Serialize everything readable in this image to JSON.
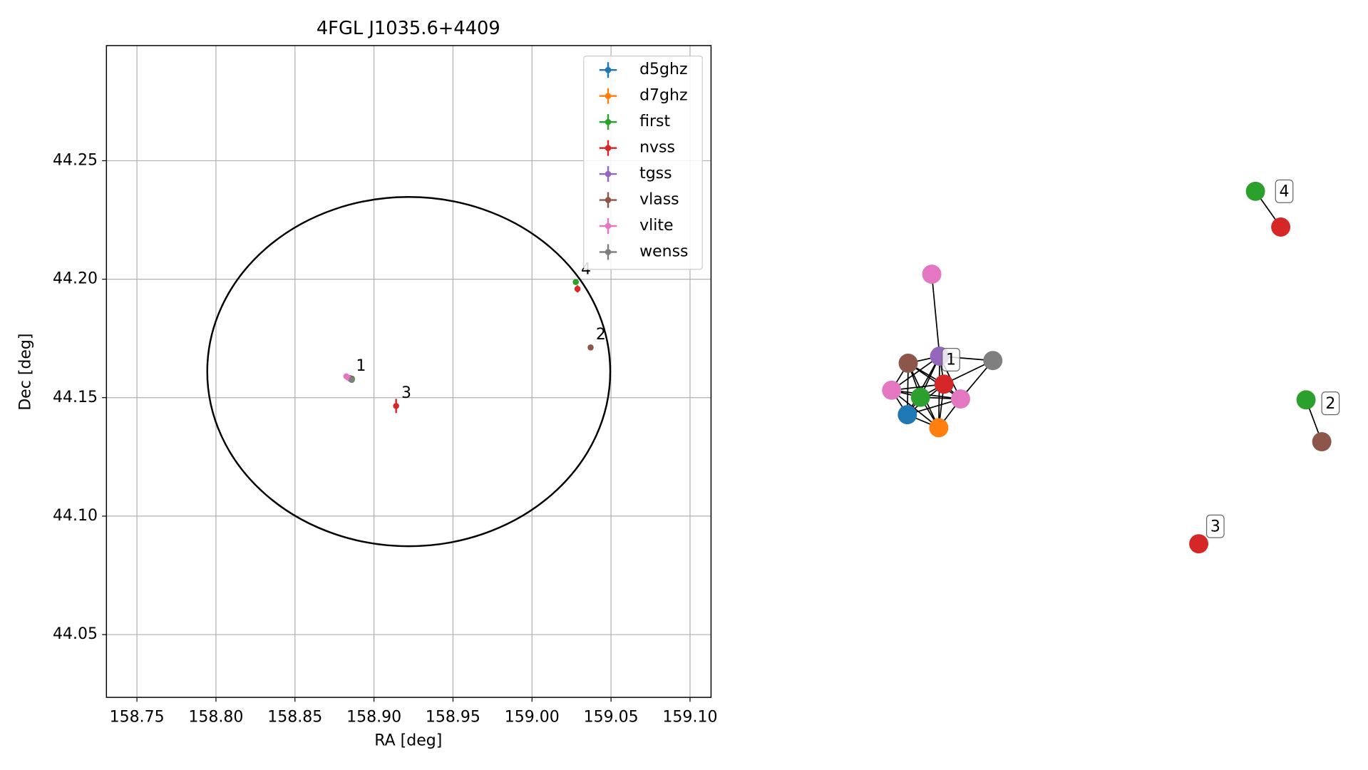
{
  "chart_data": [
    {
      "type": "scatter",
      "title": "4FGL J1035.6+4409",
      "x_label": "RA [deg]",
      "y_label": "Dec [deg]",
      "xlim": [
        158.7307,
        159.1133
      ],
      "ylim": [
        44.0235,
        44.2986
      ],
      "xticks": [
        158.75,
        {
          "value": 158.8,
          "label": "158.80"
        },
        158.85,
        {
          "value": 158.9,
          "label": "158.90"
        },
        158.95,
        {
          "value": 159.0,
          "label": "159.00"
        },
        159.05,
        {
          "value": 159.1,
          "label": "159.10"
        }
      ],
      "yticks": [
        44.05,
        {
          "value": 44.1,
          "label": "44.10"
        },
        44.15,
        {
          "value": 44.2,
          "label": "44.20"
        },
        44.25
      ],
      "grid": true,
      "legend": "upper right",
      "ellipse": {
        "ra": 158.922,
        "dec": 44.161,
        "a": 0.1275,
        "b": 0.0737
      },
      "series": [
        {
          "name": "d5ghz",
          "color": "#1f77b4",
          "x": [
            158.886
          ],
          "values": [
            44.158
          ]
        },
        {
          "name": "d7ghz",
          "color": "#ff7f0e",
          "x": [
            158.886
          ],
          "values": [
            44.158
          ]
        },
        {
          "name": "first",
          "color": "#2ca02c",
          "x": [
            158.886,
            159.0277
          ],
          "values": [
            44.158,
            44.1988
          ]
        },
        {
          "name": "nvss",
          "color": "#d62728",
          "x": [
            158.885,
            158.914,
            159.0288
          ],
          "values": [
            44.158,
            44.1465,
            44.1959
          ],
          "yerr": [
            0.0015,
            0.003,
            0.0015
          ]
        },
        {
          "name": "tgss",
          "color": "#9467bd",
          "x": [
            158.885
          ],
          "values": [
            44.158
          ]
        },
        {
          "name": "vlass",
          "color": "#8c564b",
          "x": [
            158.8853,
            159.0371
          ],
          "values": [
            44.158,
            44.1712
          ]
        },
        {
          "name": "vlite",
          "color": "#e377c2",
          "x": [
            158.8825,
            158.8835
          ],
          "values": [
            44.159,
            44.1585
          ]
        },
        {
          "name": "wenss",
          "color": "#7f7f7f",
          "x": [
            158.886
          ],
          "values": [
            44.1575
          ]
        }
      ],
      "annotations": [
        {
          "text": "1",
          "x": 158.8853,
          "y": 44.158
        },
        {
          "text": "2",
          "x": 159.0371,
          "y": 44.1712
        },
        {
          "text": "3",
          "x": 158.914,
          "y": 44.1465
        },
        {
          "text": "4",
          "x": 159.0277,
          "y": 44.1988
        }
      ]
    },
    {
      "type": "network",
      "labels": [
        "1",
        "2",
        "3",
        "4"
      ]
    }
  ]
}
